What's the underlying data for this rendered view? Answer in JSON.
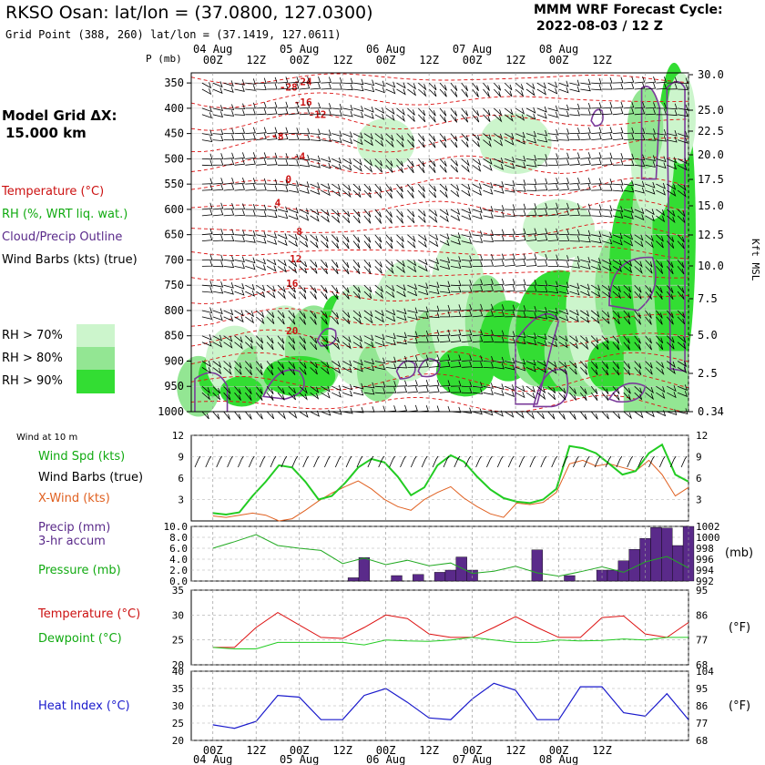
{
  "header": {
    "title": "RKSO Osan:  lat/lon = (37.0800, 127.0300)",
    "grid_point": "Grid Point (388, 260) lat/lon = (37.1419, 127.0611)",
    "forecast_label": "MMM WRF Forecast Cycle:",
    "cycle": "2022-08-03 / 12  Z"
  },
  "model_grid": {
    "label": "Model Grid ΔX:",
    "value": "15.000 km"
  },
  "legend": {
    "temperature": "Temperature (°C)",
    "rh": "RH (%, WRT liq. wat.)",
    "cloud": "Cloud/Precip Outline",
    "barbs": "Wind Barbs (kts) (true)",
    "rh70": "RH > 70%",
    "rh80": "RH > 80%",
    "rh90": "RH > 90%"
  },
  "colors": {
    "rh70": "#ccf5cc",
    "rh80": "#93e693",
    "rh90": "#33dd33",
    "temperature": "#dd1111",
    "cloud": "#7a3a9a",
    "wind_speed": "#22cc22",
    "xwind": "#e06020",
    "precip": "#5a2a8a",
    "pressure": "#22aa22",
    "dewpoint": "#22cc22",
    "heat_index": "#1a1acc",
    "label_red": "#cc1111",
    "label_green": "#11aa11",
    "label_purple": "#5a2a8a",
    "label_blue": "#1a1acc"
  },
  "time_axis": {
    "dates": [
      "04 Aug",
      "05 Aug",
      "06 Aug",
      "07 Aug",
      "08 Aug"
    ],
    "hours": [
      "00Z",
      "12Z",
      "00Z",
      "12Z",
      "00Z",
      "12Z",
      "00Z",
      "12Z",
      "00Z",
      "12Z"
    ],
    "pressure_unit_label": "P (mb)",
    "height_unit_label": "Kft MSL"
  },
  "chart_data": [
    {
      "type": "heatmap",
      "name": "time-height cross section",
      "y_axis_pressure_mb": [
        350,
        400,
        450,
        500,
        550,
        600,
        650,
        700,
        750,
        800,
        850,
        900,
        950,
        1000
      ],
      "y_axis_height_kft": [
        "30.0",
        "25.0",
        "22.5",
        "20.0",
        "17.5",
        "15.0",
        "12.5",
        "10.0",
        "7.5",
        "5.0",
        "2.5",
        "0.34"
      ],
      "temperature_contour_labels": [
        {
          "label": "-28",
          "hour": 21,
          "p": 358
        },
        {
          "label": "-24",
          "hour": 25,
          "p": 347
        },
        {
          "label": "-16",
          "hour": 25,
          "p": 388
        },
        {
          "label": "-12",
          "hour": 29,
          "p": 412
        },
        {
          "label": "-8",
          "hour": 18,
          "p": 455
        },
        {
          "label": "-4",
          "hour": 24,
          "p": 495
        },
        {
          "label": "0",
          "hour": 21,
          "p": 540
        },
        {
          "label": "4",
          "hour": 18,
          "p": 587
        },
        {
          "label": "8",
          "hour": 24,
          "p": 643
        },
        {
          "label": "12",
          "hour": 23,
          "p": 697
        },
        {
          "label": "16",
          "hour": 22,
          "p": 746
        },
        {
          "label": "20",
          "hour": 22,
          "p": 840
        }
      ]
    },
    {
      "type": "line",
      "name": "wind at 10 m",
      "panel_label": "Wind at 10 m",
      "ylim": [
        0,
        12
      ],
      "yticks": [
        3,
        6,
        9,
        12
      ],
      "x_hours": [
        0,
        3,
        6,
        9,
        12,
        15,
        18,
        21,
        24,
        27,
        30,
        33,
        36,
        39,
        42,
        45,
        48,
        51,
        54,
        57,
        60,
        63,
        66,
        69,
        72,
        75,
        78,
        81,
        84,
        87,
        90,
        93,
        96,
        99,
        102,
        105,
        108
      ],
      "series": [
        {
          "name": "Wind Spd (kts)",
          "values": [
            1.1,
            0.9,
            1.2,
            3.5,
            5.5,
            7.8,
            7.5,
            5.5,
            3.0,
            3.5,
            5.3,
            7.5,
            8.7,
            8.2,
            6.2,
            3.6,
            4.7,
            7.8,
            9.2,
            8.3,
            6.2,
            4.4,
            3.2,
            2.7,
            2.5,
            3.0,
            4.5,
            10.5,
            10.2,
            9.5,
            8.0,
            6.5,
            7.0,
            9.5,
            10.7,
            6.5,
            5.5
          ]
        },
        {
          "name": "X-Wind (kts)",
          "values": [
            0.7,
            0.5,
            0.8,
            1.1,
            0.8,
            0.0,
            0.3,
            1.5,
            2.8,
            3.9,
            4.8,
            5.6,
            4.5,
            3.0,
            2.0,
            1.5,
            3.0,
            4.0,
            4.8,
            3.2,
            2.0,
            1.0,
            0.5,
            2.5,
            2.3,
            2.6,
            4.0,
            8.0,
            8.5,
            7.7,
            8.0,
            7.5,
            7.0,
            8.5,
            6.5,
            3.5,
            4.7
          ]
        }
      ]
    },
    {
      "type": "bar",
      "name": "precip and pressure",
      "precip_axis": {
        "label": "Precip (mm)",
        "label2": "3-hr accum",
        "ylim": [
          0,
          10
        ],
        "ticks": [
          "0.0",
          "2.0",
          "4.0",
          "6.0",
          "8.0",
          "10.0"
        ]
      },
      "pressure_axis": {
        "label": "Pressure (mb)",
        "ylim": [
          992,
          1002
        ],
        "ticks": [
          "992",
          "994",
          "996",
          "998",
          "1000",
          "1002"
        ],
        "unit": "(mb)"
      },
      "precip_hours": [
        39,
        42,
        51,
        57,
        63,
        66,
        69,
        72,
        90,
        99,
        108,
        111,
        114,
        117,
        120,
        123,
        126,
        129,
        132
      ],
      "precip_values": [
        0.6,
        4.3,
        1.0,
        1.2,
        1.6,
        2.0,
        4.4,
        2.0,
        5.7,
        1.0,
        2.0,
        2.0,
        3.7,
        5.8,
        7.8,
        9.8,
        9.7,
        6.5,
        10.0
      ],
      "pressure_hours": [
        0,
        6,
        12,
        18,
        24,
        30,
        36,
        42,
        48,
        54,
        60,
        66,
        72,
        78,
        84,
        90,
        96,
        102,
        108,
        114,
        120,
        126,
        132
      ],
      "pressure_values": [
        998.0,
        999.2,
        1000.5,
        998.5,
        998.0,
        997.6,
        995.2,
        996.2,
        995.0,
        995.8,
        994.8,
        995.3,
        993.4,
        993.8,
        994.7,
        993.5,
        992.9,
        993.7,
        994.6,
        993.6,
        995.5,
        996.5,
        994.4
      ]
    },
    {
      "type": "line",
      "name": "temperature and dewpoint",
      "ylim_c": [
        20,
        35
      ],
      "yticks_c": [
        "20",
        "25",
        "30",
        "35"
      ],
      "yticks_f": [
        "68",
        "77",
        "86",
        "95"
      ],
      "unit_f": "(°F)",
      "x_hours": [
        0,
        6,
        12,
        18,
        24,
        30,
        36,
        42,
        48,
        54,
        60,
        66,
        72,
        78,
        84,
        90,
        96,
        102,
        108,
        114,
        120,
        126,
        132
      ],
      "series": [
        {
          "name": "Temperature (°C)",
          "values": [
            23.5,
            23.5,
            27.5,
            30.5,
            28.0,
            25.5,
            25.3,
            27.5,
            30.0,
            29.3,
            26.2,
            25.5,
            25.5,
            27.5,
            29.7,
            27.5,
            25.5,
            25.5,
            29.5,
            29.8,
            26.2,
            25.5,
            28.5
          ]
        },
        {
          "name": "Dewpoint (°C)",
          "values": [
            23.5,
            23.2,
            23.2,
            24.5,
            24.5,
            24.5,
            24.5,
            24.0,
            25.0,
            24.8,
            24.7,
            25.0,
            25.5,
            25.0,
            24.5,
            24.5,
            25.0,
            24.8,
            24.9,
            25.2,
            25.0,
            25.5,
            25.5
          ]
        }
      ]
    },
    {
      "type": "line",
      "name": "heat index",
      "ylim_c": [
        20,
        40
      ],
      "yticks_c": [
        "20",
        "25",
        "30",
        "35",
        "40"
      ],
      "yticks_f": [
        "68",
        "77",
        "86",
        "95",
        "104"
      ],
      "unit_f": "(°F)",
      "x_hours": [
        0,
        6,
        12,
        18,
        24,
        30,
        36,
        42,
        48,
        54,
        60,
        66,
        72,
        78,
        84,
        90,
        96,
        102,
        108,
        114,
        120,
        126,
        132
      ],
      "series": [
        {
          "name": "Heat Index (°C)",
          "values": [
            24.5,
            23.5,
            25.5,
            33.0,
            32.5,
            26.0,
            26.0,
            33.0,
            35.0,
            31.0,
            26.5,
            26.0,
            32.0,
            36.5,
            34.5,
            26.0,
            26.0,
            35.5,
            35.5,
            28.0,
            27.0,
            33.5,
            26.0
          ]
        }
      ]
    }
  ]
}
